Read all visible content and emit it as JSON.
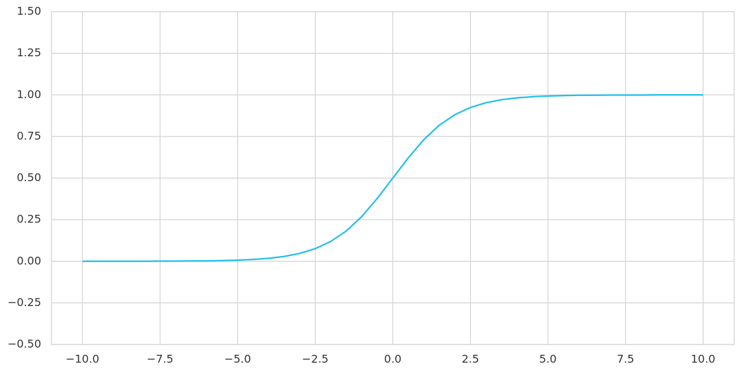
{
  "chart_data": {
    "type": "line",
    "x": [
      -10,
      -9.5,
      -9,
      -8.5,
      -8,
      -7.5,
      -7,
      -6.5,
      -6,
      -5.5,
      -5,
      -4.5,
      -4,
      -3.5,
      -3,
      -2.5,
      -2,
      -1.5,
      -1,
      -0.5,
      0,
      0.5,
      1,
      1.5,
      2,
      2.5,
      3,
      3.5,
      4,
      4.5,
      5,
      5.5,
      6,
      6.5,
      7,
      7.5,
      8,
      8.5,
      9,
      9.5,
      10
    ],
    "series": [
      {
        "color": "#1ebfea",
        "values": [
          0.0,
          0.0,
          0.0,
          0.0,
          0.0,
          0.001,
          0.001,
          0.002,
          0.002,
          0.004,
          0.007,
          0.011,
          0.018,
          0.029,
          0.047,
          0.076,
          0.119,
          0.182,
          0.269,
          0.378,
          0.5,
          0.622,
          0.731,
          0.818,
          0.881,
          0.924,
          0.953,
          0.971,
          0.982,
          0.989,
          0.993,
          0.996,
          0.998,
          0.998,
          0.999,
          0.999,
          0.999,
          1.0,
          1.0,
          1.0,
          1.0
        ]
      }
    ],
    "xlim": [
      -11,
      11
    ],
    "ylim": [
      -0.5,
      1.5
    ],
    "xticks": [
      {
        "value": -10,
        "label": "−10.0"
      },
      {
        "value": -7.5,
        "label": "−7.5"
      },
      {
        "value": -5,
        "label": "−5.0"
      },
      {
        "value": -2.5,
        "label": "−2.5"
      },
      {
        "value": 0,
        "label": "0.0"
      },
      2.5,
      {
        "value": 5,
        "label": "5.0"
      },
      7.5,
      {
        "value": 10,
        "label": "10.0"
      }
    ],
    "yticks": [
      {
        "value": -0.5,
        "label": "−0.50"
      },
      {
        "value": -0.25,
        "label": "−0.25"
      },
      {
        "value": 0,
        "label": "0.00"
      },
      {
        "value": 0.25,
        "label": "0.25"
      },
      {
        "value": 0.5,
        "label": "0.50"
      },
      {
        "value": 0.75,
        "label": "0.75"
      },
      {
        "value": 1,
        "label": "1.00"
      },
      {
        "value": 1.25,
        "label": "1.25"
      },
      {
        "value": 1.5,
        "label": "1.50"
      }
    ],
    "grid": true
  }
}
